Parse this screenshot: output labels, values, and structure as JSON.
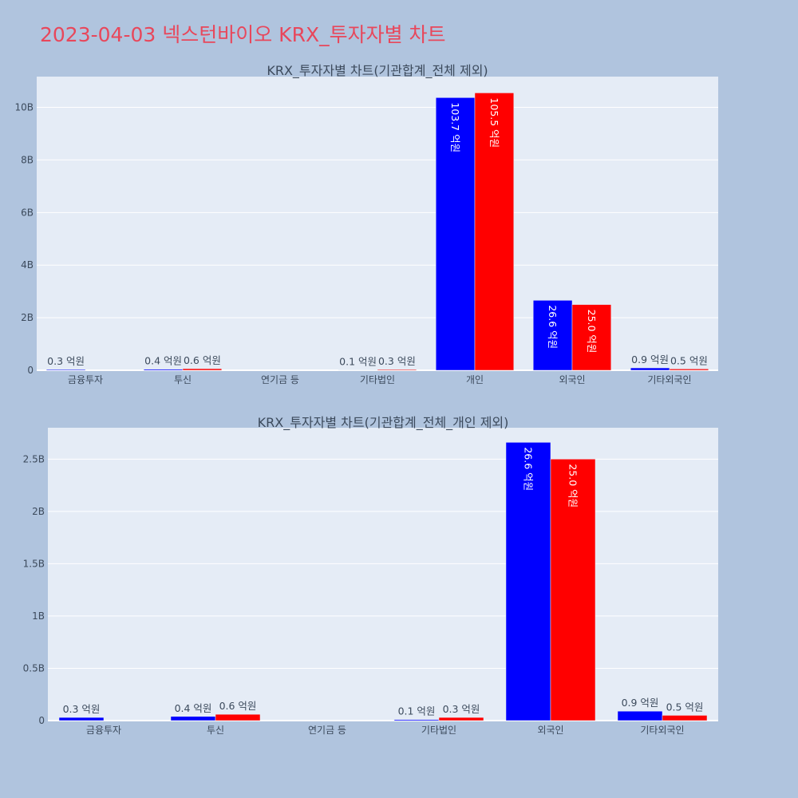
{
  "page": {
    "title": "2023-04-03 넥스턴바이오 KRX_투자자별 차트",
    "title_color": "#e8475b",
    "background": "#b0c4de",
    "plot_background": "#e5ecf6",
    "grid_color": "#ffffff"
  },
  "chart_data": [
    {
      "type": "bar",
      "title": "KRX_투자자별 차트(기관합계_전체 제외)",
      "categories": [
        "금융투자",
        "투신",
        "연기금 등",
        "기타법인",
        "개인",
        "외국인",
        "기타외국인"
      ],
      "series": [
        {
          "color": "#0000ff",
          "values": [
            30000000,
            40000000,
            0,
            10000000,
            10370000000,
            2660000000,
            90000000
          ],
          "labels": [
            "0.3 억원",
            "0.4 억원",
            "",
            "0.1 억원",
            "103.7 억원",
            "26.6 억원",
            "0.9 억원"
          ]
        },
        {
          "color": "#ff0000",
          "values": [
            0,
            60000000,
            0,
            30000000,
            10550000000,
            2500000000,
            50000000
          ],
          "labels": [
            "",
            "0.6 억원",
            "",
            "0.3 억원",
            "105.5 억원",
            "25.0 억원",
            "0.5 억원"
          ]
        }
      ],
      "ylim": [
        0,
        11170000000
      ],
      "yticks": [
        0,
        2000000000,
        4000000000,
        6000000000,
        8000000000,
        10000000000
      ],
      "ytick_labels": [
        "0",
        "2B",
        "4B",
        "6B",
        "8B",
        "10B"
      ],
      "grid": true,
      "xlabel": "",
      "ylabel": ""
    },
    {
      "type": "bar",
      "title": "KRX_투자자별 차트(기관합계_전체_개인 제외)",
      "categories": [
        "금융투자",
        "투신",
        "연기금 등",
        "기타법인",
        "외국인",
        "기타외국인"
      ],
      "series": [
        {
          "color": "#0000ff",
          "values": [
            30000000,
            40000000,
            0,
            10000000,
            2660000000,
            90000000
          ],
          "labels": [
            "0.3 억원",
            "0.4 억원",
            "",
            "0.1 억원",
            "26.6 억원",
            "0.9 억원"
          ]
        },
        {
          "color": "#ff0000",
          "values": [
            0,
            60000000,
            0,
            30000000,
            2500000000,
            50000000
          ],
          "labels": [
            "",
            "0.6 억원",
            "",
            "0.3 억원",
            "25.0 억원",
            "0.5 억원"
          ]
        }
      ],
      "ylim": [
        0,
        2800000000
      ],
      "yticks": [
        0,
        500000000,
        1000000000,
        1500000000,
        2000000000,
        2500000000
      ],
      "ytick_labels": [
        "0",
        "0.5B",
        "1B",
        "1.5B",
        "2B",
        "2.5B"
      ],
      "grid": true,
      "xlabel": "",
      "ylabel": ""
    }
  ]
}
